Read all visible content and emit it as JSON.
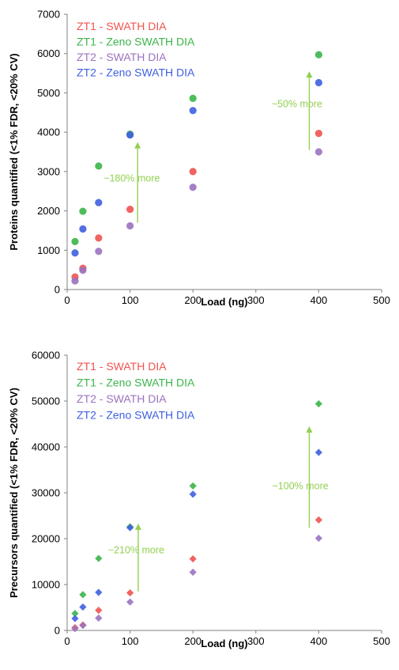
{
  "chart_data": [
    {
      "type": "scatter",
      "marker": "circle",
      "title": "",
      "xlabel": "Load (ng)",
      "ylabel": "Proteins quantified (<1% FDR, <20% CV)",
      "xlim": [
        0,
        500
      ],
      "ylim": [
        0,
        7000
      ],
      "xticks": [
        "0",
        "100",
        "200",
        "300",
        "400",
        "500"
      ],
      "yticks": [
        "0",
        "1000",
        "2000",
        "3000",
        "4000",
        "5000",
        "6000",
        "7000"
      ],
      "grid": false,
      "legend_position": "top-left",
      "series": [
        {
          "name": "ZT1 - SWATH DIA",
          "color": "#f0534f",
          "x": [
            12.5,
            25,
            50,
            100,
            200,
            400
          ],
          "y": [
            320,
            540,
            1310,
            2040,
            3000,
            3970
          ]
        },
        {
          "name": "ZT1 - Zeno SWATH DIA",
          "color": "#3cb54a",
          "x": [
            12.5,
            25,
            50,
            100,
            200,
            400
          ],
          "y": [
            1220,
            1990,
            3140,
            3950,
            4860,
            5970
          ]
        },
        {
          "name": "ZT2 - SWATH DIA",
          "color": "#9b72c0",
          "x": [
            12.5,
            25,
            50,
            100,
            200,
            400
          ],
          "y": [
            220,
            490,
            970,
            1620,
            2600,
            3500
          ]
        },
        {
          "name": "ZT2 - Zeno SWATH DIA",
          "color": "#3f5fe0",
          "x": [
            12.5,
            25,
            50,
            100,
            200,
            400
          ],
          "y": [
            930,
            1540,
            2210,
            3930,
            4550,
            5260
          ]
        }
      ],
      "annotations": [
        {
          "text": "~180% more",
          "color": "#92d050",
          "arrow_x": 112,
          "arrow_y": [
            1700,
            3750
          ],
          "text_x": 58,
          "text_y": 2750
        },
        {
          "text": "~50% more",
          "color": "#92d050",
          "arrow_x": 385,
          "arrow_y": [
            3550,
            5550
          ],
          "text_x": 325,
          "text_y": 4640
        }
      ]
    },
    {
      "type": "scatter",
      "marker": "diamond",
      "title": "",
      "xlabel": "Load (ng)",
      "ylabel": "Precursors quantified (<1% FDR, <20% CV)",
      "xlim": [
        0,
        500
      ],
      "ylim": [
        0,
        60000
      ],
      "xticks": [
        "0",
        "100",
        "200",
        "300",
        "400",
        "500"
      ],
      "yticks": [
        "0",
        "10000",
        "20000",
        "30000",
        "40000",
        "50000",
        "60000"
      ],
      "grid": false,
      "legend_position": "top-left",
      "series": [
        {
          "name": "ZT1 - SWATH DIA",
          "color": "#f0534f",
          "x": [
            12.5,
            25,
            50,
            100,
            200,
            400
          ],
          "y": [
            600,
            1200,
            4400,
            8200,
            15600,
            24100
          ]
        },
        {
          "name": "ZT1 - Zeno SWATH DIA",
          "color": "#3cb54a",
          "x": [
            12.5,
            25,
            50,
            100,
            200,
            400
          ],
          "y": [
            3700,
            7800,
            15700,
            22600,
            31500,
            49400
          ]
        },
        {
          "name": "ZT2 - SWATH DIA",
          "color": "#9b72c0",
          "x": [
            12.5,
            25,
            50,
            100,
            200,
            400
          ],
          "y": [
            400,
            1100,
            2700,
            6200,
            12700,
            20100
          ]
        },
        {
          "name": "ZT2 - Zeno SWATH DIA",
          "color": "#3f5fe0",
          "x": [
            12.5,
            25,
            50,
            100,
            200,
            400
          ],
          "y": [
            2600,
            5100,
            8300,
            22400,
            29700,
            38800
          ]
        }
      ],
      "annotations": [
        {
          "text": "~210% more",
          "color": "#92d050",
          "arrow_x": 113,
          "arrow_y": [
            8500,
            23300
          ],
          "text_x": 65,
          "text_y": 16800
        },
        {
          "text": "~100% more",
          "color": "#92d050",
          "arrow_x": 385,
          "arrow_y": [
            22400,
            44500
          ],
          "text_x": 326,
          "text_y": 30800
        }
      ]
    }
  ]
}
